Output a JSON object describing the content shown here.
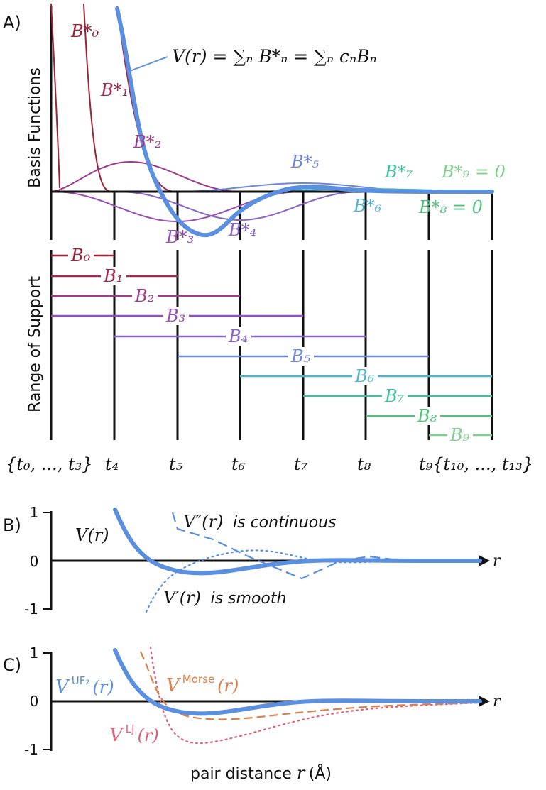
{
  "panelA": {
    "letter": "A)",
    "ylabel_top": "Basis Functions",
    "ylabel_bottom": "Range of Support",
    "equation": "V(r) = ∑ₙ B*ₙ = ∑ₙ cₙBₙ",
    "basis_labels": [
      "B*₀",
      "B*₁",
      "B*₂",
      "B*₃",
      "B*₄",
      "B*₅",
      "B*₆",
      "B*₇",
      "B*₈ = 0",
      "B*₉ = 0"
    ],
    "support_labels": [
      "B₀",
      "B₁",
      "B₂",
      "B₃",
      "B₄",
      "B₅",
      "B₆",
      "B₇",
      "B₈",
      "B₉"
    ],
    "knot_labels": [
      "{t₀, ..., t₃}",
      "t₄",
      "t₅",
      "t₆",
      "t₇",
      "t₈",
      "t₉{t₁₀, ..., t₁₃}"
    ]
  },
  "panelB": {
    "letter": "B)",
    "y_ticks": [
      "1",
      "0",
      "-1"
    ],
    "axis_var": "r",
    "label_v": "V(r)",
    "label_v2_math": "V″(r)",
    "label_v2_text": "is continuous",
    "label_v1_math": "V′(r)",
    "label_v1_text": "is smooth"
  },
  "panelC": {
    "letter": "C)",
    "y_ticks": [
      "1",
      "0",
      "-1"
    ],
    "axis_var": "r",
    "label_uf2_base": "V",
    "label_uf2_sup": "UF₂",
    "label_uf2_arg": "(r)",
    "label_morse_base": "V",
    "label_morse_sup": "Morse",
    "label_morse_arg": "(r)",
    "label_lj_base": "V",
    "label_lj_sup": "LJ",
    "label_lj_arg": "(r)",
    "xlabel_text": "pair distance ",
    "xlabel_var": "r",
    "xlabel_unit": " (Å)"
  },
  "colors": {
    "basis": [
      "#9b2335",
      "#a02a55",
      "#a03a8a",
      "#9a4fb8",
      "#8a63cc",
      "#6e86de",
      "#4fb3cf",
      "#40c0a0",
      "#52c27f",
      "#7fd08a"
    ],
    "potential": "#5b8fe0",
    "morse": "#d9804a",
    "lj": "#e0607a",
    "axis": "#111111"
  }
}
